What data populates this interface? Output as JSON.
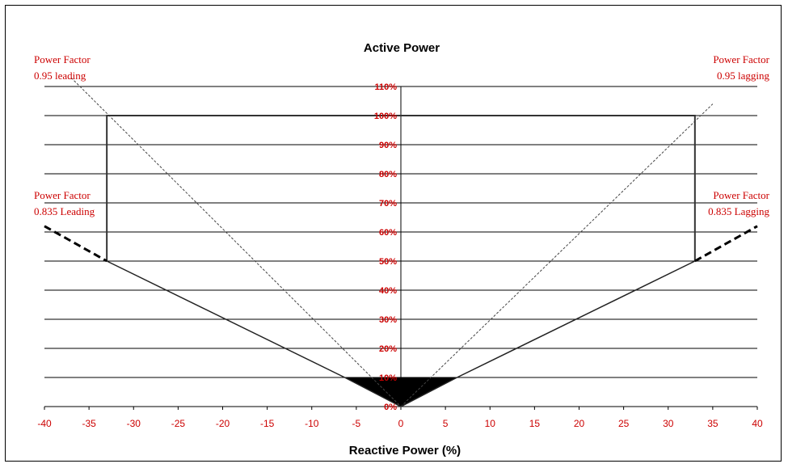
{
  "chart_data": {
    "type": "line",
    "title": "Active Power",
    "xlabel": "Reactive Power (%)",
    "ylabel": "",
    "xlim": [
      -40,
      40
    ],
    "ylim": [
      0,
      110
    ],
    "x_ticks": [
      -40,
      -35,
      -30,
      -25,
      -20,
      -15,
      -10,
      -5,
      0,
      5,
      10,
      15,
      20,
      25,
      30,
      35,
      40
    ],
    "y_ticks": [
      "0%",
      "10%",
      "20%",
      "30%",
      "40%",
      "50%",
      "60%",
      "70%",
      "80%",
      "90%",
      "100%",
      "110%"
    ],
    "grid": "horizontal",
    "capability_boundary": {
      "x": [
        -33,
        -33,
        33,
        33
      ],
      "y": [
        50,
        100,
        100,
        50
      ]
    },
    "pf_0_835_lines": {
      "solid": [
        {
          "x": [
            -33,
            -6.3,
            0,
            6.3,
            33
          ],
          "y": [
            50,
            10,
            0,
            10,
            50
          ]
        }
      ],
      "dashed_extensions": [
        {
          "x": [
            -40,
            -33
          ],
          "y": [
            62,
            50
          ]
        },
        {
          "x": [
            33,
            40
          ],
          "y": [
            50,
            62
          ]
        }
      ]
    },
    "pf_0_95_lines": [
      {
        "x": [
          -37,
          0
        ],
        "y": [
          113,
          0
        ]
      },
      {
        "x": [
          0,
          35
        ],
        "y": [
          0,
          104
        ]
      }
    ],
    "filled_region": {
      "x": [
        -6.3,
        6.3,
        0
      ],
      "y": [
        10,
        10,
        0
      ]
    },
    "annotations": [
      {
        "lines": [
          "Power Factor",
          "0.95 leading"
        ],
        "position": "top-left"
      },
      {
        "lines": [
          "Power Factor",
          "0.95 lagging"
        ],
        "position": "top-right"
      },
      {
        "lines": [
          "Power Factor",
          "0.835 Leading"
        ],
        "position": "middle-left"
      },
      {
        "lines": [
          "Power Factor",
          "0.835 Lagging"
        ],
        "position": "middle-right"
      }
    ],
    "colors": {
      "axis": "#000000",
      "grid": "#000000",
      "labels": "#cc0000",
      "fill": "#000000"
    }
  }
}
